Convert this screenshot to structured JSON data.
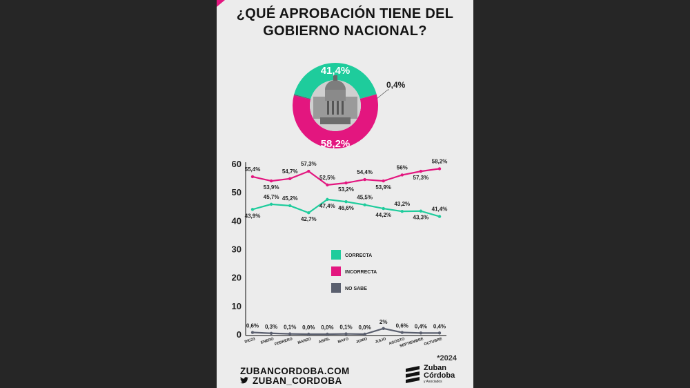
{
  "header": {
    "title_line1": "¿QUÉ APROBACIÓN TIENE DEL",
    "title_line2": "GOBIERNO NACIONAL?"
  },
  "pie": {
    "slices": [
      {
        "name": "Correcta",
        "value": 41.4,
        "label": "41,4%",
        "color": "#1ecc9c"
      },
      {
        "name": "Incorrecta",
        "value": 58.2,
        "label": "58,2%",
        "color": "#e3167f"
      },
      {
        "name": "No sabe",
        "value": 0.4,
        "label": "0,4%",
        "color": "#5a5f6e"
      }
    ]
  },
  "chart_data": {
    "type": "line",
    "categories": [
      "DIC23",
      "ENERO",
      "FEBRERO",
      "MARZO",
      "ABRIL",
      "MAYO",
      "JUNIO",
      "JULIO",
      "AGOSTO",
      "SEPTIEMBRE",
      "OCTUBRE"
    ],
    "series": [
      {
        "name": "CORRECTA",
        "color": "#1ecc9c",
        "values": [
          43.9,
          45.7,
          45.2,
          42.7,
          47.4,
          46.6,
          45.5,
          44.2,
          43.2,
          43.3,
          41.4
        ],
        "labels": [
          "43,9%",
          "45,7%",
          "45,2%",
          "42,7%",
          "47,4%",
          "46,6%",
          "45,5%",
          "44,2%",
          "43,2%",
          "43,3%",
          "41,4%"
        ]
      },
      {
        "name": "INCORRECTA",
        "color": "#e3167f",
        "values": [
          55.4,
          53.9,
          54.7,
          57.3,
          52.5,
          53.2,
          54.4,
          53.9,
          56,
          57.3,
          58.2
        ],
        "labels": [
          "55,4%",
          "53,9%",
          "54,7%",
          "57,3%",
          "52,5%",
          "53,2%",
          "54,4%",
          "53,9%",
          "56%",
          "57,3%",
          "58,2%"
        ]
      },
      {
        "name": "NO SABE",
        "color": "#5a5f6e",
        "values": [
          0.6,
          0.3,
          0.1,
          0.0,
          0.0,
          0.1,
          0.0,
          2,
          0.6,
          0.4,
          0.4
        ],
        "labels": [
          "0,6%",
          "0,3%",
          "0,1%",
          "0,0%",
          "0,0%",
          "0,1%",
          "0,0%",
          "2%",
          "0,6%",
          "0,4%",
          "0,4%"
        ]
      }
    ],
    "y_ticks": [
      "0",
      "10",
      "20",
      "30",
      "40",
      "50",
      "60"
    ],
    "ylim": [
      0,
      60
    ],
    "legend": "center",
    "note": "*2024"
  },
  "footer": {
    "website": "ZUBANCORDOBA.COM",
    "twitter": "ZUBAN_CORDOBA",
    "brand_line1": "Zuban",
    "brand_line2": "Córdoba",
    "brand_line3": "y Asociados"
  }
}
